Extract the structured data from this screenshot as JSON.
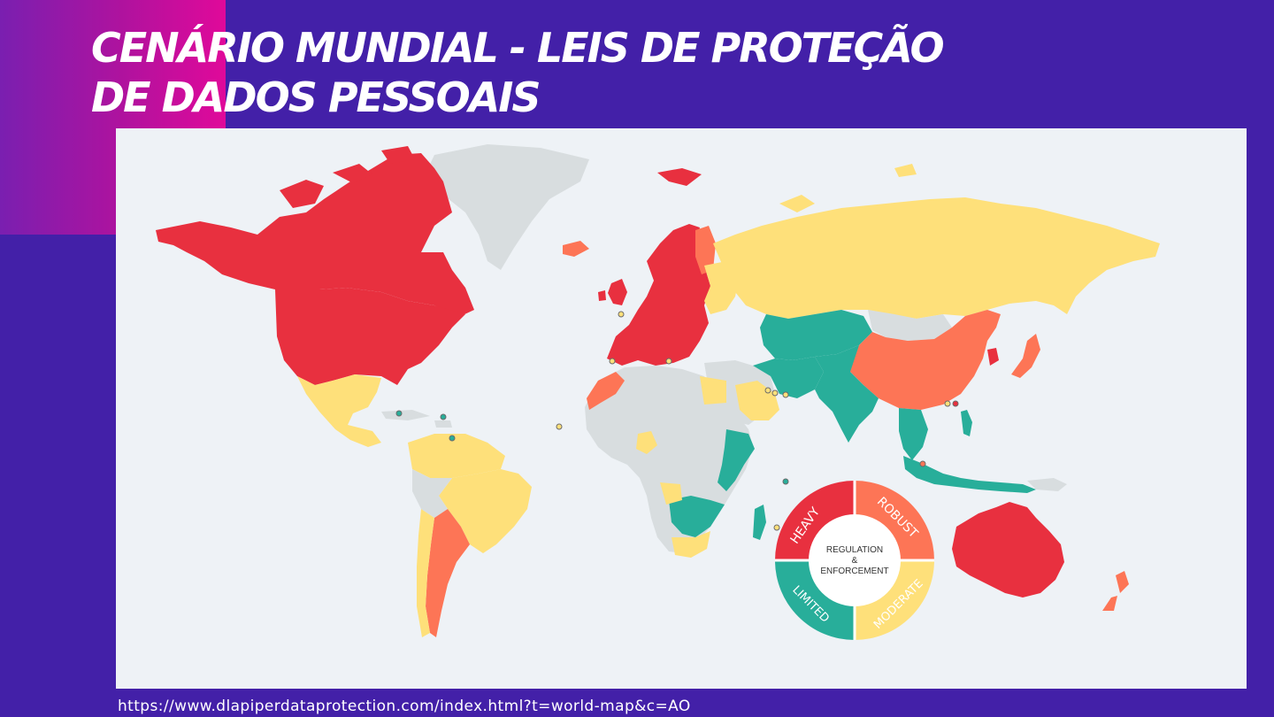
{
  "slide": {
    "title_line1": "CENÁRIO MUNDIAL - LEIS DE PROTEÇÃO",
    "title_line2": "DE DADOS PESSOAIS",
    "source_url": "https://www.dlapiperdataprotection.com/index.html?t=world-map&c=AO"
  },
  "legend": {
    "center_line1": "REGULATION",
    "center_line2": "&",
    "center_line3": "ENFORCEMENT",
    "heavy": "HEAVY",
    "robust": "ROBUST",
    "moderate": "MODERATE",
    "limited": "LIMITED"
  },
  "colors": {
    "heavy": "#e8303f",
    "robust": "#fd7556",
    "moderate": "#fee07a",
    "limited": "#28ae9a",
    "no_law": "#d8dddf",
    "ocean": "#eef2f6"
  }
}
